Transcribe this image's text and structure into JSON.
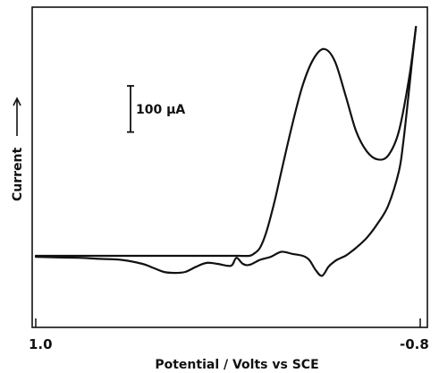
{
  "chart_data": {
    "type": "line",
    "title": "",
    "xlabel": "Potential / Volts vs SCE",
    "ylabel": "Current",
    "x_ticks": [
      "1.0",
      "-0.8"
    ],
    "xlim": [
      1.0,
      -0.8
    ],
    "ylim": [
      -125,
      1180
    ],
    "grid": false,
    "scale_bar": {
      "label": "100 µA",
      "value": 100
    },
    "series": [
      {
        "segment": "forward scan",
        "x": [
          1.0,
          0.9,
          0.8,
          0.7,
          0.6,
          0.5,
          0.4,
          0.3,
          0.2,
          0.1,
          0.05,
          0.0,
          -0.02,
          -0.05,
          -0.08,
          -0.12,
          -0.15,
          -0.2,
          -0.25,
          -0.3,
          -0.35,
          -0.4,
          -0.45,
          -0.5,
          -0.55,
          -0.6,
          -0.65,
          -0.7,
          -0.75,
          -0.78
        ],
        "y": [
          0,
          0,
          0,
          0,
          0,
          0,
          0,
          0,
          0,
          0,
          0,
          0,
          10,
          40,
          120,
          280,
          420,
          650,
          850,
          980,
          1030,
          970,
          800,
          620,
          520,
          480,
          500,
          620,
          900,
          1140
        ]
      },
      {
        "segment": "reverse scan",
        "x": [
          -0.78,
          -0.76,
          -0.74,
          -0.72,
          -0.7,
          -0.65,
          -0.6,
          -0.55,
          -0.5,
          -0.47,
          -0.45,
          -0.43,
          -0.41,
          -0.39,
          -0.37,
          -0.34,
          -0.31,
          -0.28,
          -0.25,
          -0.2,
          -0.15,
          -0.1,
          -0.05,
          0.0,
          0.03,
          0.06,
          0.08,
          0.1,
          0.15,
          0.2,
          0.25,
          0.3,
          0.35,
          0.4,
          0.45,
          0.5,
          0.6,
          0.7,
          0.8,
          0.9,
          1.0
        ],
        "y": [
          1140,
          950,
          750,
          560,
          420,
          250,
          160,
          90,
          40,
          15,
          0,
          -10,
          -20,
          -35,
          -55,
          -100,
          -70,
          -20,
          0,
          10,
          20,
          -5,
          -20,
          -45,
          -40,
          -10,
          -45,
          -50,
          -40,
          -35,
          -55,
          -80,
          -85,
          -80,
          -60,
          -40,
          -20,
          -15,
          -10,
          -8,
          -5
        ]
      }
    ]
  }
}
